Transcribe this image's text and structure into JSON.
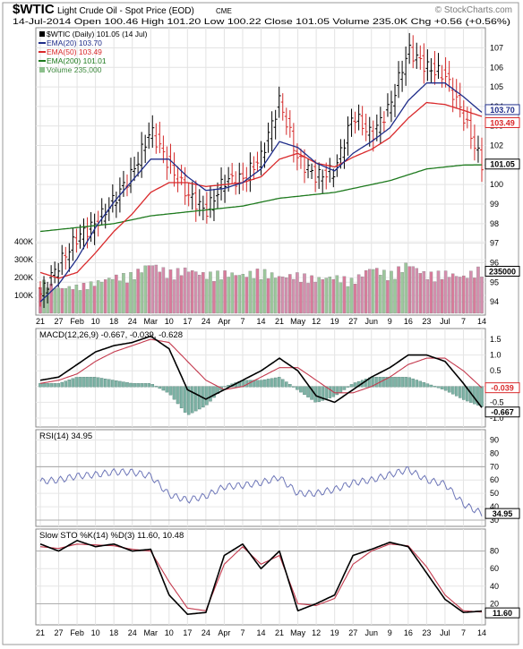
{
  "header": {
    "symbol": "$WTIC",
    "description": "Light Crude Oil - Spot Price (EOD)",
    "exchange": "CME",
    "watermark": "© StockCharts.com",
    "quote_line": "14-Jul-2014   Open 100.46  High 101.20  Low 100.22  Close 101.05  Volume 235.0K  Chg +0.56 (+0.56%)",
    "legend": [
      {
        "label": "$WTIC (Daily) 101.05 (14 Jul)",
        "color": "#000000"
      },
      {
        "label": "EMA(20) 103.70",
        "color": "#1f2d8a"
      },
      {
        "label": "EMA(50) 103.49",
        "color": "#d9292b"
      },
      {
        "label": "EMA(200) 101.01",
        "color": "#1e7a1e"
      },
      {
        "label": "Volume 235,000",
        "color": "#3f8a3f"
      }
    ]
  },
  "price_axis": {
    "ticks": [
      "107",
      "106",
      "105",
      "104",
      "103",
      "102",
      "101",
      "100",
      "99",
      "98",
      "97",
      "96",
      "95",
      "94"
    ],
    "flags": [
      {
        "text": "103.70",
        "color": "#1f2d8a"
      },
      {
        "text": "103.49",
        "color": "#d9292b"
      },
      {
        "text": "101.05",
        "color": "#000000"
      },
      {
        "text": "235000",
        "color": "#000000"
      }
    ]
  },
  "volume_axis": {
    "ticks": [
      "400K",
      "300K",
      "200K",
      "100K"
    ]
  },
  "date_axis": {
    "labels": [
      "21",
      "27",
      "Feb",
      "10",
      "18",
      "24",
      "Mar",
      "10",
      "17",
      "24",
      "Apr",
      "7",
      "14",
      "21",
      "May",
      "12",
      "19",
      "27",
      "Jun",
      "9",
      "16",
      "23",
      "Jul",
      "7",
      "14"
    ]
  },
  "macd": {
    "title": "MACD(12,26,9) -0.667, -0.039, -0.628",
    "ticks": [
      "1.5",
      "1.0",
      "0.5",
      "0.0",
      "-0.5",
      "-1.0"
    ],
    "flags": [
      {
        "text": "-0.039",
        "color": "#d9292b"
      },
      {
        "text": "-0.667",
        "color": "#000000"
      }
    ]
  },
  "rsi": {
    "title": "RSI(14) 34.95",
    "ticks": [
      "90",
      "80",
      "70",
      "60",
      "50",
      "40",
      "30"
    ],
    "flags": [
      {
        "text": "34.95",
        "color": "#000000"
      }
    ]
  },
  "sto": {
    "title": "Slow STO %K(14) %D(3) 11.60, 10.48",
    "ticks": [
      "80",
      "60",
      "40",
      "20"
    ],
    "flags": [
      {
        "text": "11.60",
        "color": "#000000"
      }
    ]
  },
  "chart_data": {
    "type": "line",
    "title": "$WTIC Light Crude Oil - Spot Price (EOD) CME",
    "x_key_dates": [
      "2014-01-21",
      "2014-01-27",
      "2014-02-03",
      "2014-02-10",
      "2014-02-18",
      "2014-02-24",
      "2014-03-03",
      "2014-03-10",
      "2014-03-17",
      "2014-03-24",
      "2014-04-01",
      "2014-04-07",
      "2014-04-14",
      "2014-04-21",
      "2014-05-01",
      "2014-05-12",
      "2014-05-19",
      "2014-05-27",
      "2014-06-02",
      "2014-06-09",
      "2014-06-16",
      "2014-06-23",
      "2014-07-01",
      "2014-07-07",
      "2014-07-14"
    ],
    "close": [
      94.4,
      95.9,
      97.3,
      98.0,
      99.2,
      100.6,
      102.8,
      101.0,
      99.5,
      98.6,
      100.2,
      100.3,
      101.4,
      104.3,
      101.3,
      100.4,
      100.7,
      103.6,
      102.5,
      104.0,
      106.9,
      106.0,
      105.6,
      103.5,
      101.05
    ],
    "ema20": [
      94.0,
      94.9,
      96.2,
      97.8,
      99.1,
      100.2,
      101.3,
      101.3,
      100.4,
      99.7,
      99.8,
      100.1,
      100.8,
      102.2,
      101.9,
      101.1,
      100.7,
      101.6,
      102.2,
      102.9,
      104.3,
      105.2,
      105.2,
      104.5,
      103.7
    ],
    "ema50": [
      95.5,
      95.2,
      95.5,
      96.5,
      97.6,
      98.5,
      99.6,
      100.1,
      100.1,
      99.9,
      100.0,
      100.1,
      100.4,
      101.3,
      101.6,
      101.1,
      100.9,
      101.4,
      101.8,
      102.4,
      103.4,
      104.2,
      104.1,
      103.8,
      103.49
    ],
    "ema200": [
      97.6,
      97.7,
      97.8,
      97.9,
      98.0,
      98.2,
      98.4,
      98.5,
      98.6,
      98.7,
      98.8,
      98.9,
      99.1,
      99.3,
      99.4,
      99.5,
      99.6,
      99.8,
      100.0,
      100.2,
      100.5,
      100.8,
      100.9,
      101.0,
      101.01
    ],
    "volume_k": [
      170,
      130,
      140,
      160,
      190,
      200,
      260,
      210,
      230,
      200,
      210,
      200,
      220,
      190,
      200,
      180,
      190,
      170,
      240,
      200,
      260,
      200,
      210,
      190,
      235
    ],
    "macd": [
      0.2,
      0.3,
      0.7,
      1.1,
      1.3,
      1.4,
      1.6,
      1.2,
      -0.1,
      -0.4,
      -0.1,
      0.2,
      0.5,
      0.9,
      0.5,
      -0.3,
      -0.5,
      -0.1,
      0.3,
      0.6,
      1.0,
      1.0,
      0.8,
      0.1,
      -0.667
    ],
    "signal": [
      0.1,
      0.2,
      0.4,
      0.8,
      1.1,
      1.3,
      1.5,
      1.4,
      0.8,
      0.2,
      -0.1,
      0.0,
      0.3,
      0.6,
      0.6,
      0.2,
      -0.2,
      -0.2,
      0.0,
      0.3,
      0.7,
      0.9,
      0.9,
      0.5,
      -0.039
    ],
    "histogram": [
      0.1,
      0.1,
      0.3,
      0.3,
      0.2,
      0.1,
      0.1,
      -0.2,
      -0.9,
      -0.6,
      0.0,
      0.2,
      0.2,
      0.3,
      -0.1,
      -0.5,
      -0.3,
      0.1,
      0.3,
      0.3,
      0.3,
      0.1,
      -0.1,
      -0.4,
      -0.628
    ],
    "rsi": [
      59,
      60,
      63,
      64,
      66,
      66,
      63,
      49,
      45,
      48,
      55,
      56,
      58,
      62,
      50,
      50,
      53,
      58,
      60,
      64,
      68,
      60,
      57,
      42,
      34.95
    ],
    "sto_k": [
      88,
      80,
      92,
      85,
      88,
      80,
      82,
      30,
      8,
      10,
      75,
      88,
      60,
      80,
      12,
      20,
      30,
      75,
      82,
      90,
      85,
      55,
      25,
      10,
      11.6
    ],
    "sto_d": [
      85,
      83,
      88,
      87,
      86,
      82,
      80,
      45,
      15,
      12,
      65,
      85,
      65,
      75,
      20,
      18,
      26,
      65,
      80,
      88,
      86,
      62,
      30,
      12,
      10.48
    ],
    "ylim_price": [
      93.5,
      107.8
    ],
    "ylim_macd": [
      -1.2,
      1.7
    ],
    "ylim_rsi": [
      28,
      95
    ],
    "ylim_sto": [
      0,
      100
    ]
  }
}
